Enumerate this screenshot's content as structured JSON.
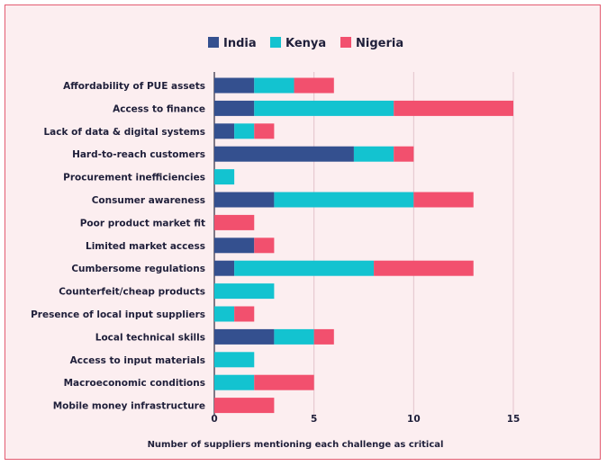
{
  "chart_data": {
    "type": "bar",
    "orientation": "horizontal",
    "stacked": true,
    "categories": [
      "Affordability of PUE assets",
      "Access to finance",
      "Lack of data & digital systems",
      "Hard-to-reach customers",
      "Procurement inefficiencies",
      "Consumer awareness",
      "Poor product market fit",
      "Limited market access",
      "Cumbersome regulations",
      "Counterfeit/cheap products",
      "Presence of local input suppliers",
      "Local technical skills",
      "Access to input materials",
      "Macroeconomic conditions",
      "Mobile money infrastructure"
    ],
    "series": [
      {
        "name": "India",
        "color": "#34508f",
        "values": [
          2,
          2,
          1,
          7,
          0,
          3,
          0,
          2,
          1,
          0,
          0,
          3,
          0,
          0,
          0
        ]
      },
      {
        "name": "Kenya",
        "color": "#13c3d0",
        "values": [
          2,
          7,
          1,
          2,
          1,
          7,
          0,
          0,
          7,
          3,
          1,
          2,
          2,
          2,
          0
        ]
      },
      {
        "name": "Nigeria",
        "color": "#f2506e",
        "values": [
          2,
          6,
          1,
          1,
          0,
          3,
          2,
          1,
          5,
          0,
          1,
          1,
          0,
          3,
          3
        ]
      }
    ],
    "xlim": [
      0,
      15
    ],
    "xticks": [
      0,
      5,
      10,
      15
    ],
    "xlabel": "Number of suppliers mentioning each challenge as critical",
    "ylabel": "",
    "title": "",
    "grid": "vertical",
    "legend": "top-center"
  }
}
